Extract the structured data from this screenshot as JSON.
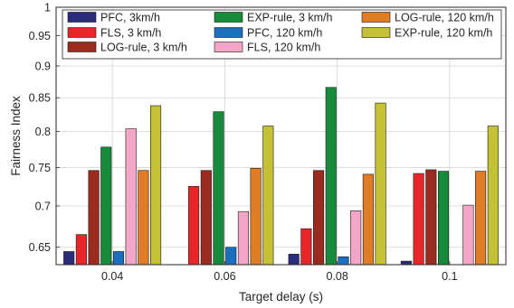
{
  "chart_data": {
    "type": "bar",
    "title": "",
    "xlabel": "Target delay (s)",
    "ylabel": "Fairness Index",
    "y_scale": "log",
    "ylim": [
      0.63,
      1.0
    ],
    "y_ticks": [
      "0.65",
      "0.7",
      "0.75",
      "0.8",
      "0.85",
      "0.9",
      "0.95",
      "1"
    ],
    "y_tick_values": [
      0.65,
      0.7,
      0.75,
      0.8,
      0.85,
      0.9,
      0.95,
      1.0
    ],
    "grid": true,
    "legend_position": "top",
    "categories": [
      "0.04",
      "0.06",
      "0.08",
      "0.1"
    ],
    "series": [
      {
        "name": "PFC, 3km/h",
        "color": "#2b2d7c",
        "values": [
          0.645,
          0.63,
          0.642,
          0.634
        ]
      },
      {
        "name": "FLS, 3 km/h",
        "color": "#e8262a",
        "values": [
          0.665,
          0.725,
          0.672,
          0.742
        ]
      },
      {
        "name": "LOG-rule, 3 km/h",
        "color": "#9b2a1f",
        "values": [
          0.746,
          0.746,
          0.746,
          0.747
        ]
      },
      {
        "name": "EXP-rule, 3 km/h",
        "color": "#178a3c",
        "values": [
          0.778,
          0.829,
          0.866,
          0.745
        ]
      },
      {
        "name": "PFC, 120 km/h",
        "color": "#1a6fc0",
        "values": [
          0.645,
          0.65,
          0.639,
          0.63
        ]
      },
      {
        "name": "FLS, 120 km/h",
        "color": "#f3a6c8",
        "values": [
          0.804,
          0.693,
          0.694,
          0.701
        ]
      },
      {
        "name": "LOG-rule, 120 km/h",
        "color": "#e07c25",
        "values": [
          0.746,
          0.749,
          0.741,
          0.745
        ]
      },
      {
        "name": "EXP-rule, 120 km/h",
        "color": "#c4c234",
        "values": [
          0.838,
          0.808,
          0.842,
          0.808
        ]
      }
    ]
  }
}
